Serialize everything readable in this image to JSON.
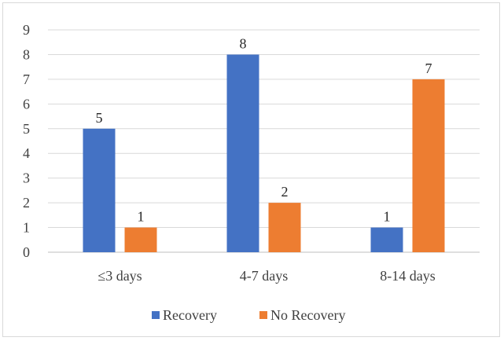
{
  "chart_data": {
    "type": "bar",
    "categories": [
      "≤3 days",
      "4-7 days",
      "8-14 days"
    ],
    "series": [
      {
        "name": "Recovery",
        "values": [
          5,
          8,
          1
        ],
        "color": "#4472c4"
      },
      {
        "name": "No Recovery",
        "values": [
          1,
          2,
          7
        ],
        "color": "#ed7d31"
      }
    ],
    "ylim": [
      0,
      9
    ],
    "yticks": [
      0,
      1,
      2,
      3,
      4,
      5,
      6,
      7,
      8,
      9
    ],
    "grid": true,
    "legend_position": "bottom",
    "title": "",
    "xlabel": "",
    "ylabel": ""
  }
}
